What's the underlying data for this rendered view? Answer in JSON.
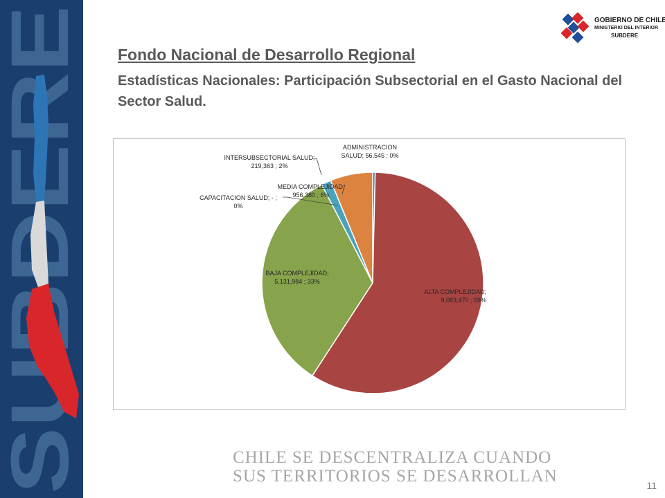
{
  "header": {
    "title": "Fondo Nacional de Desarrollo Regional",
    "subtitle": "Estadísticas Nacionales: Participación Subsectorial en el Gasto Nacional del Sector Salud."
  },
  "branding": {
    "sidebar_word": "SUBDERE",
    "logo_lines": [
      "GOBIERNO DE CHILE",
      "MINISTERIO DEL INTERIOR",
      "SUBDERE"
    ],
    "colors": {
      "sidebar": "#1a3f6e",
      "map_blue": "#2e75b6",
      "map_white": "#d9d9d9",
      "map_red": "#d9262b"
    }
  },
  "chart_data": {
    "type": "pie",
    "categories": [
      "ADMINISTRACION SALUD",
      "ALTA COMPLEJIDAD",
      "BAJA COMPLEJIDAD",
      "CAPACITACION SALUD",
      "INTERSUBSECTORIAL SALUD",
      "MEDIA COMPLEJIDAD"
    ],
    "values": [
      56545,
      9083470,
      5131984,
      0,
      219363,
      956380
    ],
    "percents": [
      "0%",
      "59%",
      "33%",
      "0%",
      "2%",
      "6%"
    ],
    "colors": [
      "#4f6d9a",
      "#a84442",
      "#87a34b",
      "#7f7f7f",
      "#4aa3bd",
      "#dc843f"
    ],
    "labels": [
      {
        "lines": [
          "ADMINISTRACION",
          "SALUD;  56,545 ; 0%"
        ]
      },
      {
        "lines": [
          "ALTA COMPLEJIDAD;",
          "9,083,470 ; 59%"
        ]
      },
      {
        "lines": [
          "BAJA COMPLEJIDAD;",
          "5,131,984 ; 33%"
        ]
      },
      {
        "lines": [
          "CAPACITACION SALUD;  -  ;",
          "0%"
        ]
      },
      {
        "lines": [
          "INTERSUBSECTORIAL  SALUD;",
          "219,363 ; 2%"
        ]
      },
      {
        "lines": [
          "MEDIA COMPLEJIDAD;",
          "956,380 ; 6%"
        ]
      }
    ]
  },
  "footer": {
    "slogan_lines": [
      "CHILE SE DESCENTRALIZA CUANDO",
      "SUS TERRITORIOS SE DESARROLLAN"
    ],
    "page_number": "11"
  }
}
